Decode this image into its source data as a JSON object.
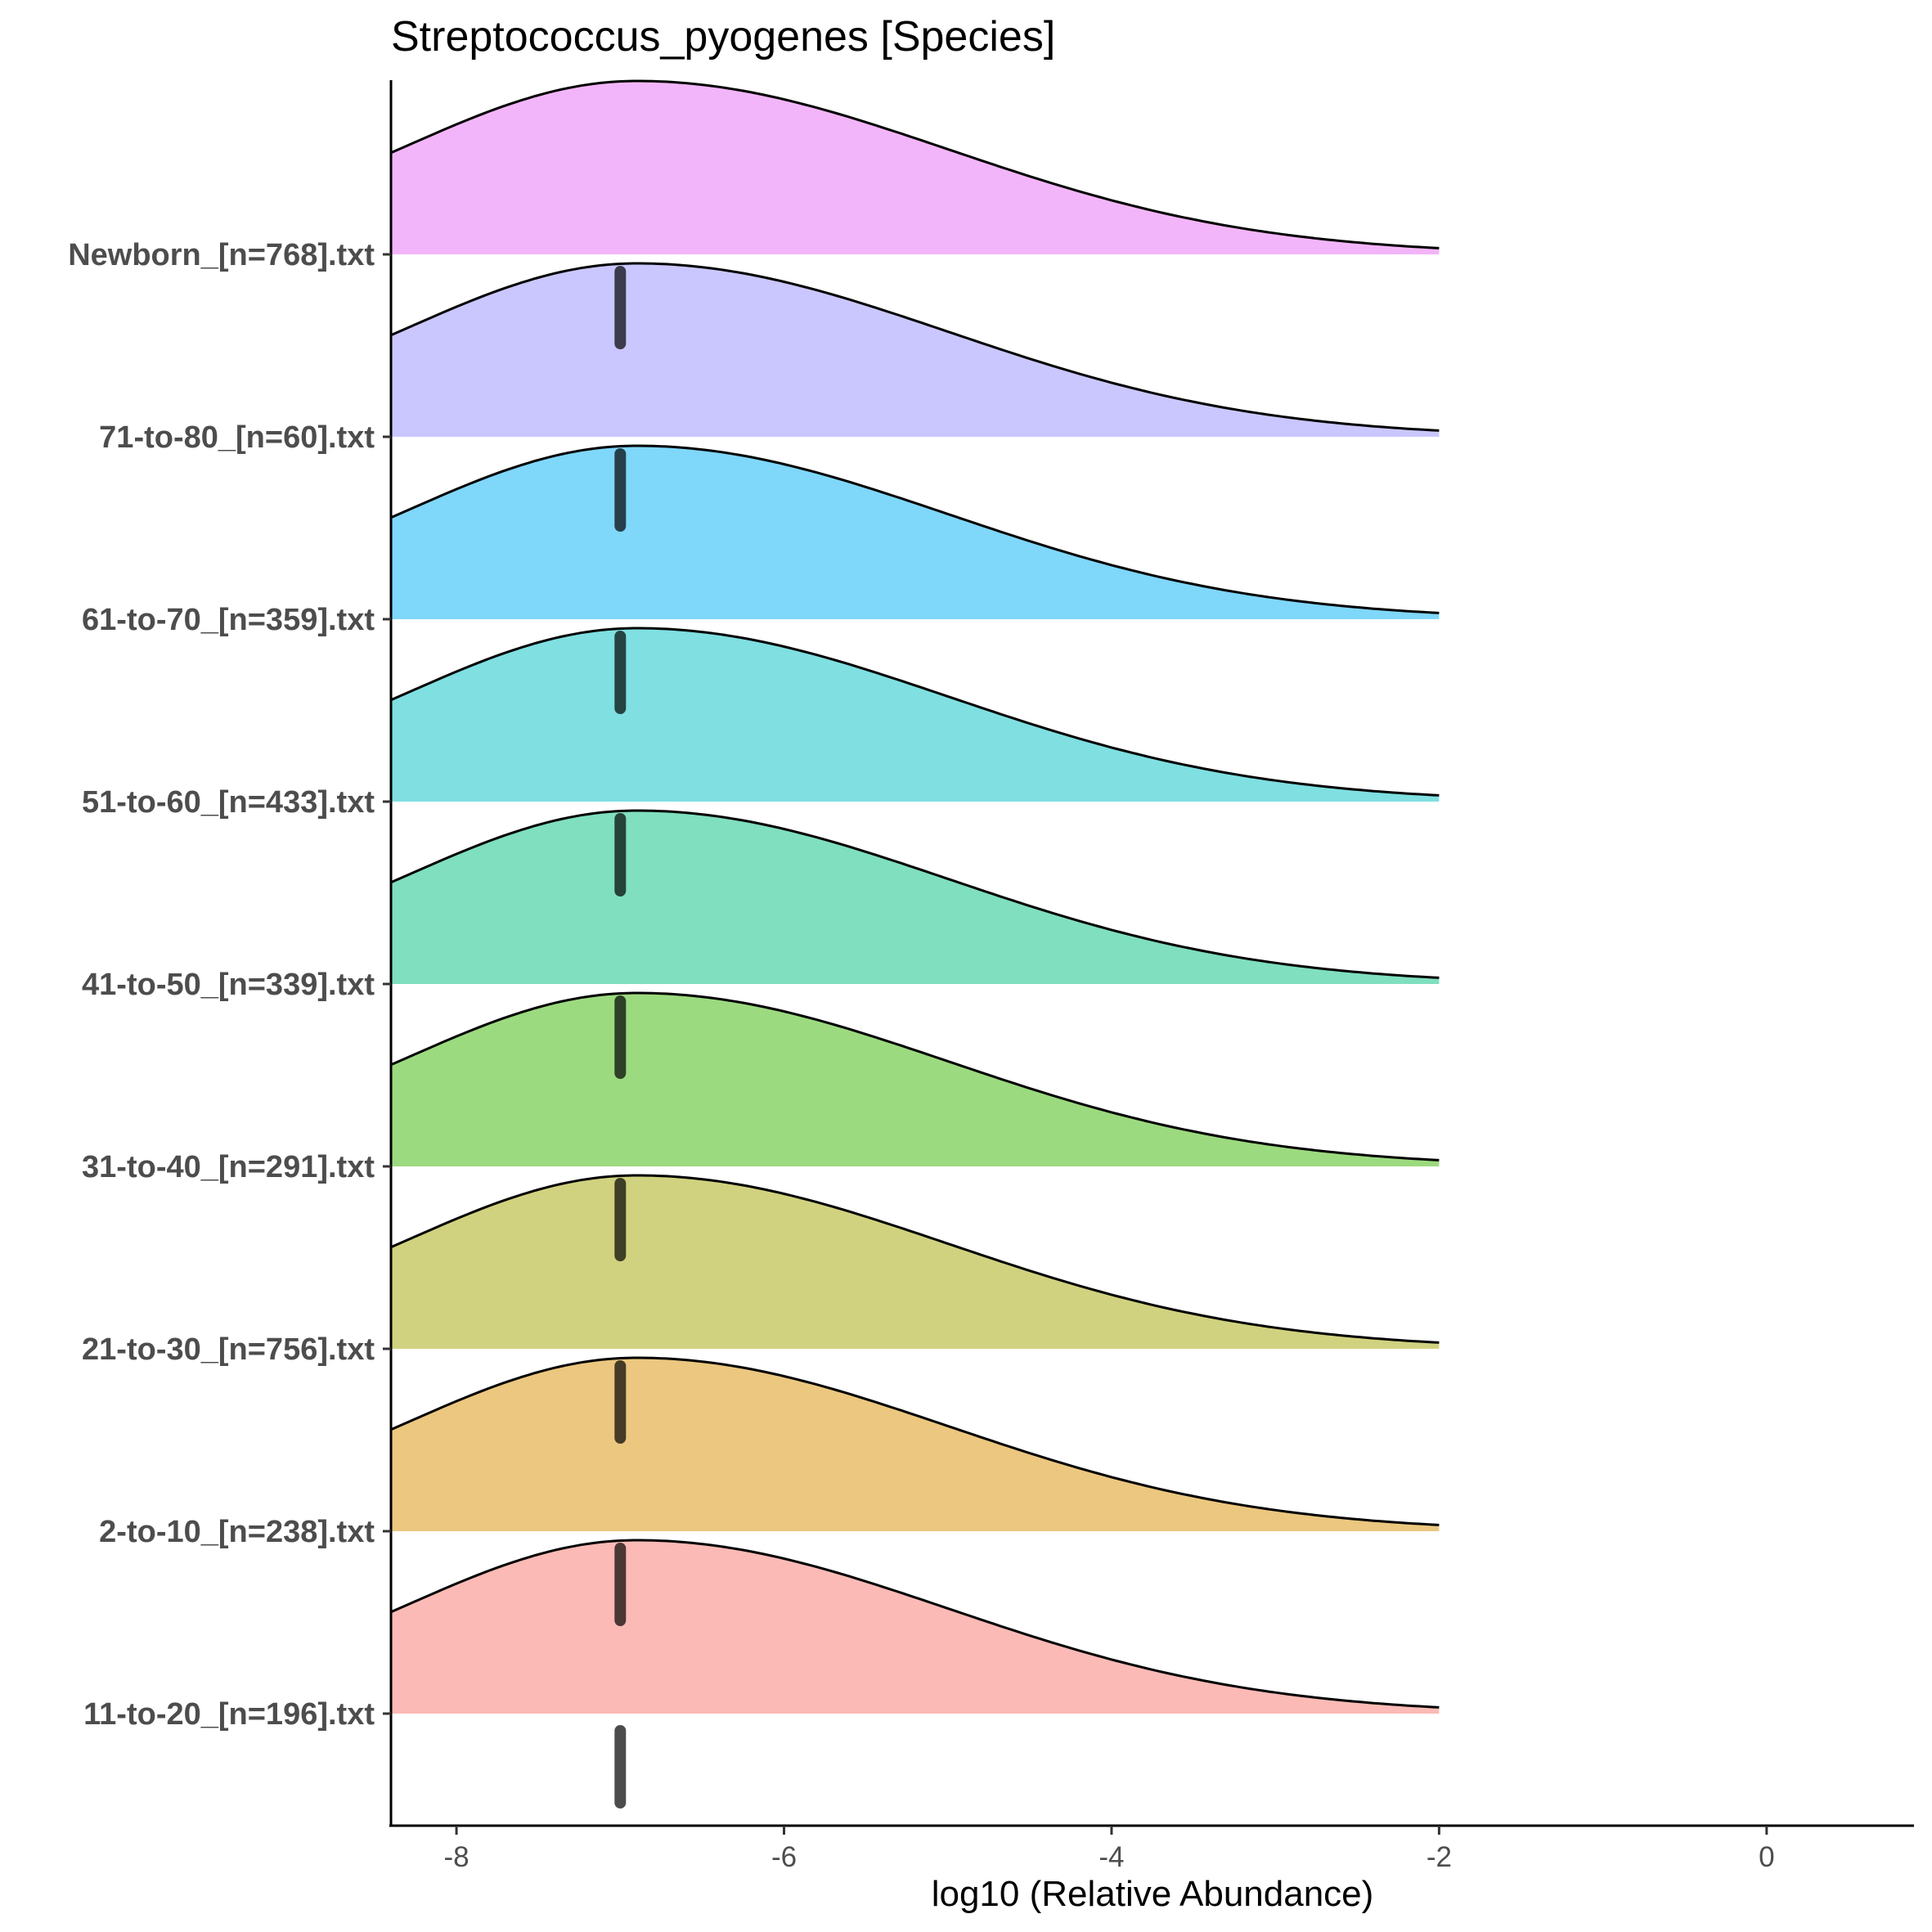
{
  "chart_data": {
    "type": "ridgeline",
    "title": "Streptococcus_pyogenes [Species]",
    "xlabel": "log10 (Relative Abundance)",
    "ylabel": "",
    "xlim": [
      -8.4,
      0.9
    ],
    "x_ticks": [
      -8,
      -6,
      -4,
      -2,
      0
    ],
    "x_tick_labels": [
      "-8",
      "-6",
      "-4",
      "-2",
      "0"
    ],
    "density_range": [
      -8.4,
      -2
    ],
    "grid": false,
    "legend": "none",
    "series": [
      {
        "name": "11-to-20_[n=196].txt",
        "color": "#F8766D",
        "mode": -6.9,
        "median": -7.0
      },
      {
        "name": "2-to-10_[n=238].txt",
        "color": "#D89000",
        "mode": -6.9,
        "median": -7.0
      },
      {
        "name": "21-to-30_[n=756].txt",
        "color": "#A3A500",
        "mode": -6.9,
        "median": -7.0
      },
      {
        "name": "31-to-40_[n=291].txt",
        "color": "#39B600",
        "mode": -6.9,
        "median": -7.0
      },
      {
        "name": "41-to-50_[n=339].txt",
        "color": "#00BF7D",
        "mode": -6.9,
        "median": -7.0
      },
      {
        "name": "51-to-60_[n=433].txt",
        "color": "#00BFC4",
        "mode": -6.9,
        "median": -7.0
      },
      {
        "name": "61-to-70_[n=359].txt",
        "color": "#00B0F6",
        "mode": -6.9,
        "median": -7.0
      },
      {
        "name": "71-to-80_[n=60].txt",
        "color": "#9590FF",
        "mode": -6.9,
        "median": -7.0
      },
      {
        "name": "Newborn_[n=768].txt",
        "color": "#E76BF3",
        "mode": -6.9,
        "median": -7.0
      }
    ]
  }
}
